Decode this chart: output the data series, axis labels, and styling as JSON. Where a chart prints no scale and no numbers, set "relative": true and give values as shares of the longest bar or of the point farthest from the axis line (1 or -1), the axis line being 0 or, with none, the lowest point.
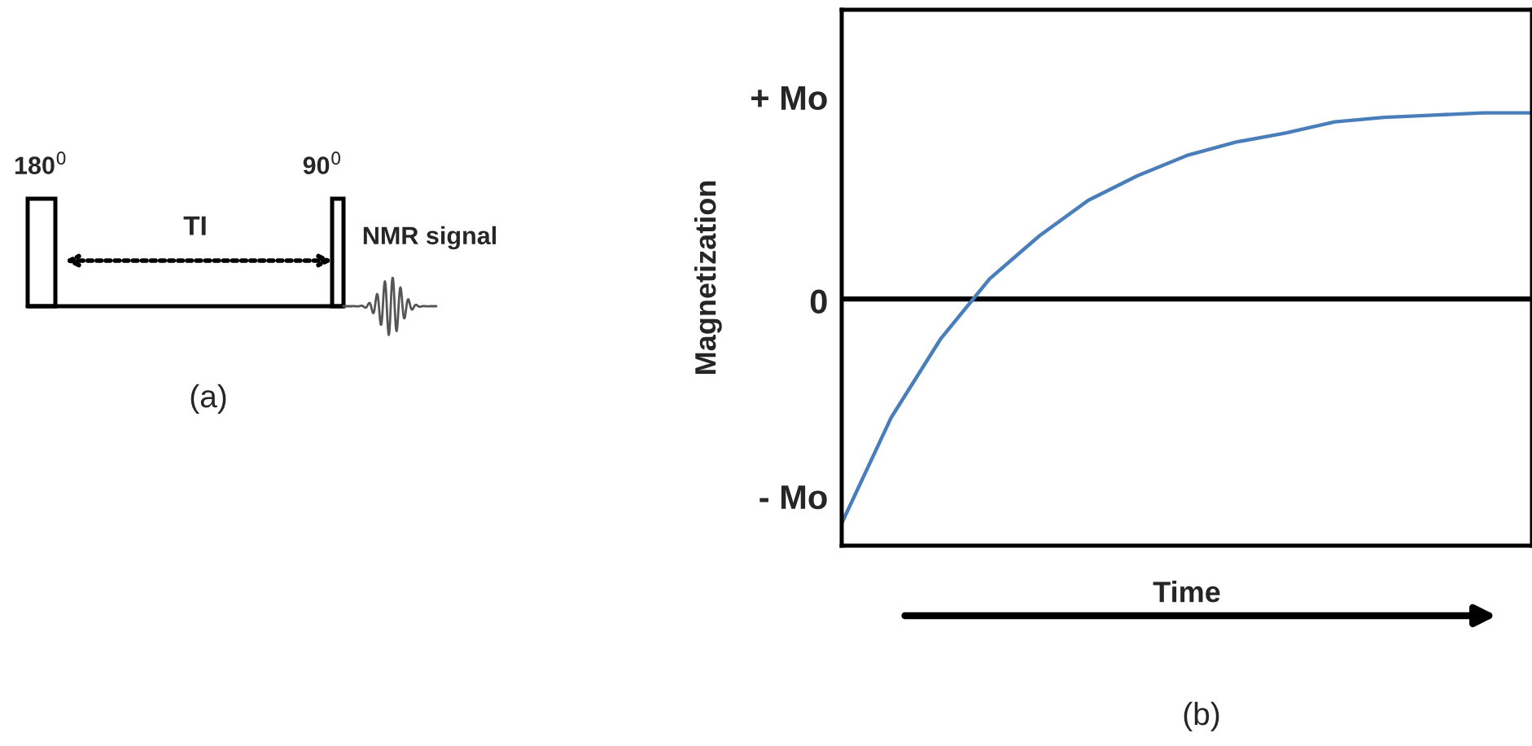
{
  "chart_data": [
    {
      "type": "other",
      "annotations": [
        "180$^{0}$",
        "90$^{0}$",
        "TI",
        "NMR signal",
        "(a)"
      ]
    },
    {
      "type": "line",
      "ylabel": "Magnetization",
      "xlabel": "Time",
      "categories": [
        null,
        null,
        null,
        null,
        null,
        null,
        null,
        null,
        null,
        null,
        null,
        null,
        null,
        null,
        null
      ],
      "series": [
        {
          "color": "#4a7ebb",
          "values": [
            -1,
            -0.53,
            -0.18,
            0.09,
            0.28,
            0.44,
            0.55,
            0.64,
            0.7,
            0.74,
            0.79,
            0.81,
            0.82,
            0.83,
            0.83
          ]
        }
      ],
      "relative": true,
      "ref_lines": [
        {
          "axis": "y",
          "value": 0,
          "color": "#000000"
        }
      ],
      "grid": false,
      "legend": false,
      "marker": "none",
      "line_style": "solid",
      "annotations": [
        "+ Mo",
        "0",
        "- Mo",
        "(b)"
      ]
    }
  ]
}
